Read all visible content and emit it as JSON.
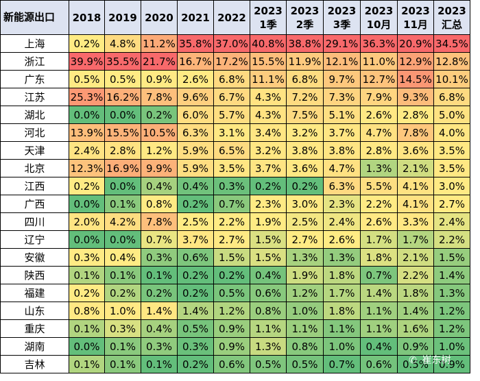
{
  "table": {
    "corner_label": "新能源出口",
    "columns": [
      {
        "top": "2018",
        "bottom": ""
      },
      {
        "top": "2019",
        "bottom": ""
      },
      {
        "top": "2020",
        "bottom": ""
      },
      {
        "top": "2021",
        "bottom": ""
      },
      {
        "top": "2022",
        "bottom": ""
      },
      {
        "top": "2023",
        "bottom": "1季"
      },
      {
        "top": "2023",
        "bottom": "2季"
      },
      {
        "top": "2023",
        "bottom": "3季"
      },
      {
        "top": "2023",
        "bottom": "10月"
      },
      {
        "top": "2023",
        "bottom": "11月"
      },
      {
        "top": "2023",
        "bottom": "汇总"
      }
    ],
    "rows": [
      {
        "province": "上海",
        "values": [
          "0.2%",
          "4.8%",
          "11.2%",
          "35.8%",
          "37.0%",
          "40.8%",
          "38.8%",
          "29.1%",
          "36.3%",
          "20.9%",
          "34.5%"
        ]
      },
      {
        "province": "浙江",
        "values": [
          "39.9%",
          "35.5%",
          "21.7%",
          "16.7%",
          "17.2%",
          "15.5%",
          "11.9%",
          "12.1%",
          "11.0%",
          "12.9%",
          "12.8%"
        ]
      },
      {
        "province": "广东",
        "values": [
          "0.5%",
          "0.5%",
          "0.9%",
          "2.6%",
          "6.8%",
          "11.1%",
          "6.8%",
          "9.7%",
          "12.7%",
          "14.5%",
          "10.1%"
        ]
      },
      {
        "province": "江苏",
        "values": [
          "25.3%",
          "16.2%",
          "7.8%",
          "9.6%",
          "6.7%",
          "4.3%",
          "7.2%",
          "7.3%",
          "7.9%",
          "9.3%",
          "6.8%"
        ]
      },
      {
        "province": "湖北",
        "values": [
          "0.0%",
          "0.0%",
          "0.2%",
          "6.0%",
          "5.7%",
          "4.3%",
          "7.5%",
          "5.1%",
          "2.6%",
          "2.8%",
          "5.0%"
        ]
      },
      {
        "province": "河北",
        "values": [
          "13.9%",
          "15.5%",
          "10.5%",
          "6.3%",
          "3.1%",
          "3.4%",
          "3.2%",
          "3.7%",
          "4.7%",
          "7.8%",
          "4.0%"
        ]
      },
      {
        "province": "天津",
        "values": [
          "2.4%",
          "2.8%",
          "1.2%",
          "5.9%",
          "6.5%",
          "3.2%",
          "3.8%",
          "3.8%",
          "2.8%",
          "3.6%",
          "3.5%"
        ]
      },
      {
        "province": "北京",
        "values": [
          "12.3%",
          "16.9%",
          "9.9%",
          "5.9%",
          "3.5%",
          "3.7%",
          "3.6%",
          "4.7%",
          "1.3%",
          "2.1%",
          "3.5%"
        ]
      },
      {
        "province": "江西",
        "values": [
          "0.2%",
          "0.0%",
          "0.4%",
          "0.4%",
          "0.3%",
          "0.2%",
          "0.2%",
          "6.3%",
          "5.5%",
          "4.1%",
          "3.0%"
        ]
      },
      {
        "province": "广西",
        "values": [
          "0.0%",
          "0.1%",
          "0.8%",
          "0.2%",
          "0.7%",
          "2.3%",
          "3.0%",
          "2.3%",
          "2.2%",
          "4.1%",
          "2.7%"
        ]
      },
      {
        "province": "四川",
        "values": [
          "2.0%",
          "4.2%",
          "7.8%",
          "2.5%",
          "2.2%",
          "1.9%",
          "2.5%",
          "2.4%",
          "2.6%",
          "3.3%",
          "2.4%"
        ]
      },
      {
        "province": "辽宁",
        "values": [
          "0.0%",
          "0.0%",
          "0.7%",
          "3.7%",
          "2.7%",
          "1.5%",
          "2.7%",
          "2.6%",
          "1.7%",
          "1.7%",
          "2.2%"
        ]
      },
      {
        "province": "安徽",
        "values": [
          "0.3%",
          "0.4%",
          "0.3%",
          "0.6%",
          "1.5%",
          "1.5%",
          "1.3%",
          "1.3%",
          "1.8%",
          "2.1%",
          "1.5%"
        ]
      },
      {
        "province": "陕西",
        "values": [
          "0.1%",
          "0.1%",
          "0.1%",
          "0.2%",
          "0.2%",
          "0.4%",
          "1.9%",
          "1.8%",
          "0.7%",
          "2.2%",
          "1.4%"
        ]
      },
      {
        "province": "福建",
        "values": [
          "0.2%",
          "0.2%",
          "0.2%",
          "0.2%",
          "0.5%",
          "0.6%",
          "1.2%",
          "1.7%",
          "1.4%",
          "1.8%",
          "1.3%"
        ]
      },
      {
        "province": "山东",
        "values": [
          "0.8%",
          "1.0%",
          "1.4%",
          "1.4%",
          "1.2%",
          "0.8%",
          "1.0%",
          "1.8%",
          "1.1%",
          "1.4%",
          "1.2%"
        ]
      },
      {
        "province": "重庆",
        "values": [
          "0.1%",
          "0.3%",
          "0.4%",
          "0.5%",
          "0.9%",
          "1.1%",
          "1.1%",
          "1.1%",
          "1.1%",
          "1.6%",
          "1.2%"
        ]
      },
      {
        "province": "湖南",
        "values": [
          "0.0%",
          "0.1%",
          "0.3%",
          "0.3%",
          "0.9%",
          "1.3%",
          "0.8%",
          "1.0%",
          "0.4%",
          "0.9%",
          "1.0%"
        ]
      },
      {
        "province": "吉林",
        "values": [
          "0.1%",
          "0.1%",
          "0.1%",
          "0.2%",
          "0.6%",
          "0.5%",
          "0.5%",
          "0.7%",
          "0.6%",
          "0.5%",
          "0.9%"
        ]
      }
    ]
  },
  "colors": {
    "header_bg": "#dde3f1",
    "scale_low": "#63be7b",
    "scale_mid": "#ffeb84",
    "scale_high": "#f8696b",
    "border": "#000000"
  },
  "watermark": {
    "icon": "wechat-icon",
    "text": "崔东树"
  }
}
